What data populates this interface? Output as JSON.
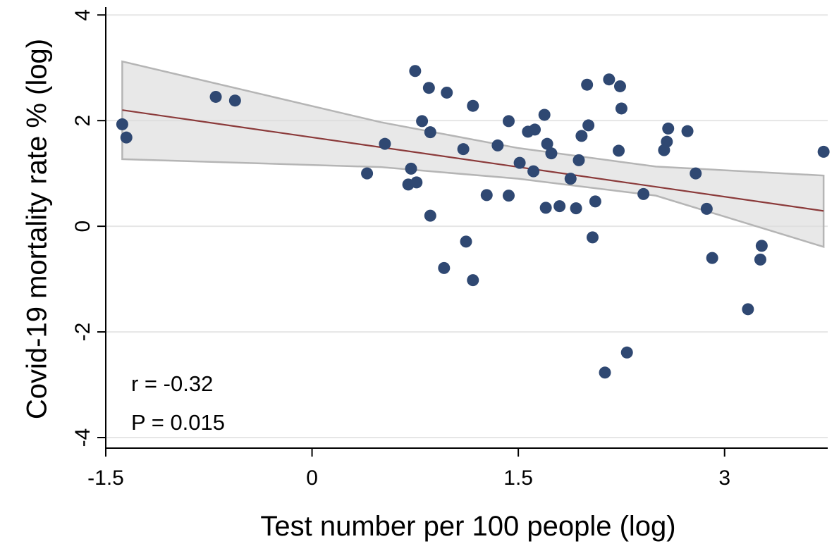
{
  "chart_data": {
    "type": "scatter",
    "title": "",
    "xlabel": "Test number per 100 people (log)",
    "ylabel": "Covid-19 mortality rate % (log)",
    "xlim": [
      -1.5,
      3.75
    ],
    "ylim": [
      -4.2,
      4.15
    ],
    "x_ticks": [
      -1.5,
      0,
      1.5,
      3
    ],
    "x_tick_labels": [
      "-1.5",
      "0",
      "1.5",
      "3"
    ],
    "y_ticks": [
      -4,
      -2,
      0,
      2,
      4
    ],
    "y_tick_labels": [
      "-4",
      "-2",
      "0",
      "2",
      "4"
    ],
    "grid": "horizontal",
    "legend": "none",
    "points": [
      {
        "x": -1.38,
        "y": 1.93
      },
      {
        "x": -1.35,
        "y": 1.68
      },
      {
        "x": -0.7,
        "y": 2.45
      },
      {
        "x": -0.56,
        "y": 2.38
      },
      {
        "x": 0.4,
        "y": 1.0
      },
      {
        "x": 0.53,
        "y": 1.56
      },
      {
        "x": 0.7,
        "y": 0.79
      },
      {
        "x": 0.72,
        "y": 1.09
      },
      {
        "x": 0.75,
        "y": 2.94
      },
      {
        "x": 0.76,
        "y": 0.83
      },
      {
        "x": 0.8,
        "y": 1.99
      },
      {
        "x": 0.85,
        "y": 2.62
      },
      {
        "x": 0.86,
        "y": 1.78
      },
      {
        "x": 0.86,
        "y": 0.2
      },
      {
        "x": 0.96,
        "y": -0.79
      },
      {
        "x": 0.98,
        "y": 2.53
      },
      {
        "x": 1.1,
        "y": 1.46
      },
      {
        "x": 1.12,
        "y": -0.29
      },
      {
        "x": 1.17,
        "y": 2.28
      },
      {
        "x": 1.17,
        "y": -1.02
      },
      {
        "x": 1.27,
        "y": 0.59
      },
      {
        "x": 1.35,
        "y": 1.53
      },
      {
        "x": 1.43,
        "y": 1.99
      },
      {
        "x": 1.43,
        "y": 0.58
      },
      {
        "x": 1.51,
        "y": 1.2
      },
      {
        "x": 1.57,
        "y": 1.79
      },
      {
        "x": 1.61,
        "y": 1.04
      },
      {
        "x": 1.62,
        "y": 1.83
      },
      {
        "x": 1.69,
        "y": 2.11
      },
      {
        "x": 1.7,
        "y": 0.35
      },
      {
        "x": 1.71,
        "y": 1.56
      },
      {
        "x": 1.74,
        "y": 1.38
      },
      {
        "x": 1.8,
        "y": 0.38
      },
      {
        "x": 1.88,
        "y": 0.9
      },
      {
        "x": 1.92,
        "y": 0.34
      },
      {
        "x": 1.94,
        "y": 1.25
      },
      {
        "x": 1.96,
        "y": 1.71
      },
      {
        "x": 2.0,
        "y": 2.68
      },
      {
        "x": 2.01,
        "y": 1.91
      },
      {
        "x": 2.04,
        "y": -0.21
      },
      {
        "x": 2.06,
        "y": 0.47
      },
      {
        "x": 2.13,
        "y": -2.77
      },
      {
        "x": 2.16,
        "y": 2.78
      },
      {
        "x": 2.23,
        "y": 1.43
      },
      {
        "x": 2.24,
        "y": 2.65
      },
      {
        "x": 2.25,
        "y": 2.23
      },
      {
        "x": 2.29,
        "y": -2.39
      },
      {
        "x": 2.41,
        "y": 0.61
      },
      {
        "x": 2.56,
        "y": 1.44
      },
      {
        "x": 2.58,
        "y": 1.6
      },
      {
        "x": 2.59,
        "y": 1.85
      },
      {
        "x": 2.73,
        "y": 1.8
      },
      {
        "x": 2.79,
        "y": 1.0
      },
      {
        "x": 2.87,
        "y": 0.33
      },
      {
        "x": 2.91,
        "y": -0.6
      },
      {
        "x": 3.17,
        "y": -1.57
      },
      {
        "x": 3.26,
        "y": -0.63
      },
      {
        "x": 3.27,
        "y": -0.37
      },
      {
        "x": 3.72,
        "y": 1.41
      }
    ],
    "fit_line": {
      "x": [
        -1.38,
        3.72
      ],
      "y": [
        2.2,
        0.29
      ]
    },
    "confidence_band": {
      "x": [
        -1.38,
        0.5,
        1.5,
        2.5,
        3.72
      ],
      "upper": [
        3.12,
        1.97,
        1.48,
        1.13,
        0.96
      ],
      "lower": [
        1.27,
        1.12,
        0.9,
        0.58,
        -0.39
      ]
    },
    "annotations": [
      "r  = -0.32",
      "P = 0.015"
    ],
    "colors": {
      "points": "#2f4872",
      "fit_line": "#8b3a3a",
      "band_fill": "#dcdcdc",
      "band_edge": "#b5b5b5",
      "grid": "#e6e6e6",
      "axis": "#000000"
    }
  }
}
